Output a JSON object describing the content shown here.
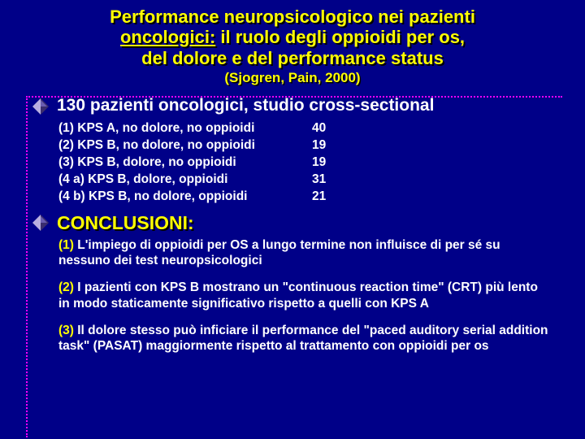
{
  "title_l1": "Performance neuropsicologico nei pazienti",
  "title_l2_a": "oncologici:",
  "title_l2_b": " il ruolo degli oppioidi per os,",
  "title_l3": "del dolore e del performance status",
  "citation": "(Sjogren, Pain, 2000)",
  "intro": "130 pazienti oncologici, studio cross-sectional",
  "groups": [
    {
      "label": "(1) KPS A, no dolore, no oppioidi",
      "n": "40"
    },
    {
      "label": "(2) KPS B, no dolore, no oppioidi",
      "n": "19"
    },
    {
      "label": "(3) KPS B, dolore, no oppioidi",
      "n": "19"
    },
    {
      "label": "(4 a) KPS B, dolore, oppioidi",
      "n": "31"
    },
    {
      "label": "(4 b) KPS B, no dolore, oppioidi",
      "n": "21"
    }
  ],
  "conclusioni_label": "CONCLUSIONI:",
  "concl": [
    {
      "num": "(1) ",
      "text": "L'impiego di oppioidi per OS a lungo termine non influisce di per sé su nessuno dei test neuropsicologici"
    },
    {
      "num": "(2) ",
      "text": "I pazienti con KPS B mostrano un \"continuous reaction time\" (CRT) più lento\nin modo staticamente significativo rispetto a quelli con KPS A"
    },
    {
      "num": "(3) ",
      "text": "Il dolore stesso può inficiare il performance del \"paced auditory serial addition task\" (PASAT) maggiormente rispetto al trattamento  con oppioidi per os"
    }
  ],
  "colors": {
    "bg": "#000088",
    "accent": "#ffff00",
    "text": "#ffffff",
    "dotted": "#ff00ff",
    "diamond_light": "#b8afe0",
    "diamond_dark": "#3a2d6e"
  }
}
